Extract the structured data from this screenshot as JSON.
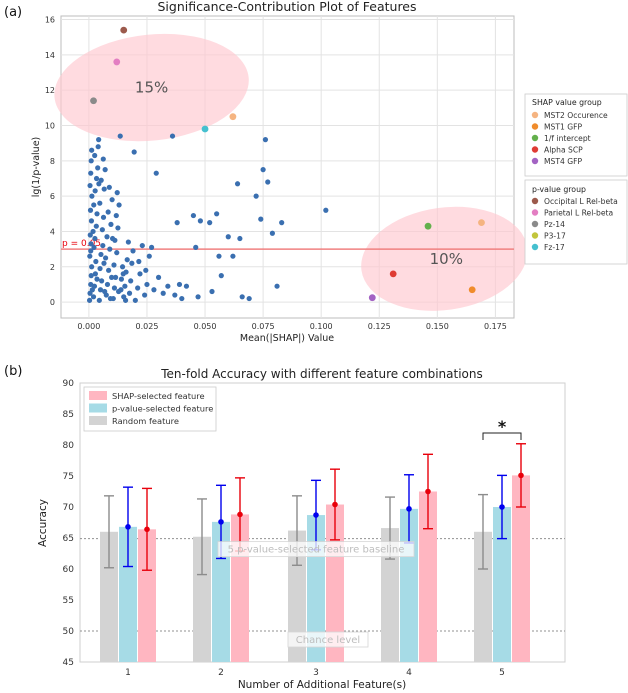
{
  "chart_data": [
    {
      "panel_label": "(a)",
      "type": "scatter",
      "title": "Significance-Contribution Plot of Features",
      "xlabel": "Mean(|SHAP|) Value",
      "ylabel": "lg(1/p-value)",
      "xlim": [
        -0.012,
        0.183
      ],
      "ylim": [
        -0.9,
        16.2
      ],
      "xticks": [
        "0.000",
        "0.025",
        "0.050",
        "0.075",
        "0.100",
        "0.125",
        "0.150",
        "0.175"
      ],
      "yticks": [
        "0",
        "2",
        "4",
        "6",
        "8",
        "10",
        "12",
        "14",
        "16"
      ],
      "grid": true,
      "threshold": {
        "y": 3.0,
        "label": "p = 0.05",
        "color": "#f08080"
      },
      "regions": [
        {
          "label": "15%",
          "cx": 0.027,
          "cy": 12.15,
          "rx": 0.042,
          "ry": 3.0,
          "angle": -6
        },
        {
          "label": "10%",
          "cx": 0.153,
          "cy": 2.45,
          "rx": 0.036,
          "ry": 2.9,
          "angle": -8
        }
      ],
      "background_points": [
        [
          0.0003,
          0.1
        ],
        [
          0.0005,
          0.5
        ],
        [
          0.0008,
          1.0
        ],
        [
          0.001,
          1.5
        ],
        [
          0.0012,
          2.0
        ],
        [
          0.0004,
          2.6
        ],
        [
          0.0009,
          3.3
        ],
        [
          0.0006,
          3.8
        ],
        [
          0.0011,
          4.6
        ],
        [
          0.0007,
          5.2
        ],
        [
          0.0013,
          6.0
        ],
        [
          0.0005,
          6.6
        ],
        [
          0.0008,
          7.3
        ],
        [
          0.001,
          8.0
        ],
        [
          0.0012,
          8.6
        ],
        [
          0.002,
          0.3
        ],
        [
          0.0024,
          0.9
        ],
        [
          0.0028,
          1.6
        ],
        [
          0.003,
          2.3
        ],
        [
          0.0022,
          3.1
        ],
        [
          0.0026,
          3.6
        ],
        [
          0.0032,
          4.3
        ],
        [
          0.0035,
          5.0
        ],
        [
          0.0021,
          5.5
        ],
        [
          0.0027,
          6.3
        ],
        [
          0.0033,
          7.0
        ],
        [
          0.0038,
          7.6
        ],
        [
          0.0025,
          8.3
        ],
        [
          0.004,
          8.8
        ],
        [
          0.0042,
          9.2
        ],
        [
          0.0045,
          0.1
        ],
        [
          0.005,
          0.7
        ],
        [
          0.0055,
          1.2
        ],
        [
          0.0048,
          1.9
        ],
        [
          0.0052,
          2.7
        ],
        [
          0.006,
          3.2
        ],
        [
          0.0058,
          4.1
        ],
        [
          0.0063,
          4.8
        ],
        [
          0.0047,
          5.6
        ],
        [
          0.0066,
          6.4
        ],
        [
          0.0053,
          6.9
        ],
        [
          0.007,
          7.5
        ],
        [
          0.0062,
          8.1
        ],
        [
          0.0075,
          0.4
        ],
        [
          0.008,
          1.0
        ],
        [
          0.0085,
          1.8
        ],
        [
          0.0072,
          2.5
        ],
        [
          0.009,
          3.0
        ],
        [
          0.0078,
          3.7
        ],
        [
          0.0095,
          4.4
        ],
        [
          0.0083,
          5.1
        ],
        [
          0.01,
          5.8
        ],
        [
          0.0088,
          6.5
        ],
        [
          0.0105,
          0.2
        ],
        [
          0.011,
          0.8
        ],
        [
          0.0115,
          1.4
        ],
        [
          0.0108,
          2.1
        ],
        [
          0.012,
          2.8
        ],
        [
          0.0112,
          3.5
        ],
        [
          0.0125,
          4.2
        ],
        [
          0.0118,
          4.9
        ],
        [
          0.013,
          5.5
        ],
        [
          0.0122,
          6.2
        ],
        [
          0.0135,
          9.4
        ],
        [
          0.0128,
          0.6
        ],
        [
          0.014,
          1.3
        ],
        [
          0.0145,
          2.0
        ],
        [
          0.015,
          0.3
        ],
        [
          0.0155,
          0.9
        ],
        [
          0.016,
          1.7
        ],
        [
          0.0165,
          2.4
        ],
        [
          0.017,
          3.4
        ],
        [
          0.0175,
          0.5
        ],
        [
          0.018,
          1.2
        ],
        [
          0.0185,
          2.2
        ],
        [
          0.019,
          2.9
        ],
        [
          0.0195,
          8.5
        ],
        [
          0.02,
          0.1
        ],
        [
          0.021,
          0.8
        ],
        [
          0.022,
          1.6
        ],
        [
          0.023,
          3.2
        ],
        [
          0.024,
          0.4
        ],
        [
          0.025,
          1.0
        ],
        [
          0.026,
          2.6
        ],
        [
          0.027,
          3.1
        ],
        [
          0.028,
          0.7
        ],
        [
          0.029,
          7.3
        ],
        [
          0.03,
          1.4
        ],
        [
          0.032,
          0.5
        ],
        [
          0.034,
          0.9
        ],
        [
          0.036,
          9.4
        ],
        [
          0.037,
          0.4
        ],
        [
          0.038,
          4.5
        ],
        [
          0.039,
          1.0
        ],
        [
          0.04,
          0.2
        ],
        [
          0.042,
          0.9
        ],
        [
          0.045,
          4.9
        ],
        [
          0.046,
          3.1
        ],
        [
          0.047,
          0.3
        ],
        [
          0.048,
          4.6
        ],
        [
          0.052,
          4.5
        ],
        [
          0.053,
          0.6
        ],
        [
          0.055,
          5.0
        ],
        [
          0.056,
          2.6
        ],
        [
          0.057,
          1.5
        ],
        [
          0.06,
          3.7
        ],
        [
          0.062,
          2.6
        ],
        [
          0.064,
          6.7
        ],
        [
          0.065,
          3.6
        ],
        [
          0.066,
          0.3
        ],
        [
          0.069,
          0.2
        ],
        [
          0.072,
          6.0
        ],
        [
          0.074,
          4.7
        ],
        [
          0.075,
          7.5
        ],
        [
          0.076,
          9.2
        ],
        [
          0.077,
          6.8
        ],
        [
          0.079,
          3.9
        ],
        [
          0.081,
          0.9
        ],
        [
          0.083,
          4.5
        ],
        [
          0.102,
          5.2
        ],
        [
          0.0008,
          2.9
        ],
        [
          0.0015,
          0.7
        ],
        [
          0.0018,
          4.0
        ],
        [
          0.0035,
          1.3
        ],
        [
          0.0043,
          6.7
        ],
        [
          0.0065,
          2.2
        ],
        [
          0.0068,
          0.6
        ],
        [
          0.0093,
          0.2
        ],
        [
          0.0098,
          1.4
        ],
        [
          0.0102,
          3.6
        ],
        [
          0.0138,
          0.7
        ],
        [
          0.0148,
          1.6
        ],
        [
          0.0158,
          0.1
        ],
        [
          0.0215,
          2.3
        ],
        [
          0.0245,
          1.8
        ]
      ],
      "background_color": "#3a6fb0",
      "series": [
        {
          "group": "SHAP value group",
          "name": "MST2 Occurence",
          "color": "#f5b481",
          "points": [
            [
              0.062,
              10.5
            ],
            [
              0.169,
              4.5
            ]
          ]
        },
        {
          "group": "SHAP value group",
          "name": "MST1 GFP",
          "color": "#f08c2c",
          "points": [
            [
              0.165,
              0.7
            ]
          ]
        },
        {
          "group": "SHAP value group",
          "name": "1/f intercept",
          "color": "#63b04c",
          "points": [
            [
              0.146,
              4.3
            ]
          ]
        },
        {
          "group": "SHAP value group",
          "name": "Alpha SCP",
          "color": "#df3c34",
          "points": [
            [
              0.131,
              1.6
            ]
          ]
        },
        {
          "group": "SHAP value group",
          "name": "MST4 GFP",
          "color": "#a363c3",
          "points": [
            [
              0.122,
              0.25
            ]
          ]
        },
        {
          "group": "p-value group",
          "name": "Occipital L Rel-beta",
          "color": "#9c5a4c",
          "points": [
            [
              0.015,
              15.4
            ]
          ]
        },
        {
          "group": "p-value group",
          "name": "Parietal L Rel-beta",
          "color": "#e37ec2",
          "points": [
            [
              0.012,
              13.6
            ]
          ]
        },
        {
          "group": "p-value group",
          "name": "Pz-14",
          "color": "#8a8a8a",
          "points": [
            [
              0.002,
              11.4
            ]
          ]
        },
        {
          "group": "p-value group",
          "name": "P3-17",
          "color": "#c2c53c",
          "points": [
            [
              0.0,
              0.0
            ]
          ]
        },
        {
          "group": "p-value group",
          "name": "Fz-17",
          "color": "#45c0cf",
          "points": [
            [
              0.05,
              9.8
            ]
          ]
        }
      ],
      "legend_groups": [
        "SHAP value group",
        "p-value group"
      ],
      "legend_placement": "right"
    },
    {
      "panel_label": "(b)",
      "type": "bar",
      "title": "Ten-fold Accuracy with different feature combinations",
      "xlabel": "Number of Additional Feature(s)",
      "ylabel": "Accuracy",
      "categories": [
        "1",
        "2",
        "3",
        "4",
        "5"
      ],
      "ylim": [
        45,
        90
      ],
      "yticks": [
        "45",
        "50",
        "55",
        "60",
        "65",
        "70",
        "75",
        "80",
        "85",
        "90"
      ],
      "series": [
        {
          "name": "Random feature",
          "color": "#d3d3d3",
          "err_color": "#8c8c8c",
          "values": [
            66.0,
            65.2,
            66.2,
            66.6,
            66.0
          ],
          "err": [
            5.8,
            6.1,
            5.6,
            5.0,
            6.0
          ]
        },
        {
          "name": "p-value-selected feature",
          "color": "#a6dbe6",
          "err_color": "#0000ee",
          "values": [
            66.8,
            67.6,
            68.7,
            69.7,
            70.0
          ],
          "err": [
            6.4,
            5.9,
            5.6,
            5.5,
            5.1
          ]
        },
        {
          "name": "SHAP-selected feature",
          "color": "#ffb6c1",
          "err_color": "#e8000b",
          "values": [
            66.4,
            68.8,
            70.4,
            72.5,
            75.1
          ],
          "err": [
            6.6,
            5.9,
            5.7,
            6.0,
            5.1
          ]
        }
      ],
      "legend_order": [
        "SHAP-selected feature",
        "p-value-selected feature",
        "Random feature"
      ],
      "legend_placement": "top-left",
      "reference_lines": [
        {
          "y": 64.9,
          "label": "5 p-value-selected feature baseline"
        },
        {
          "y": 50.0,
          "label": "Chance level"
        }
      ],
      "significance": {
        "category": "5",
        "marker": "*"
      }
    }
  ]
}
